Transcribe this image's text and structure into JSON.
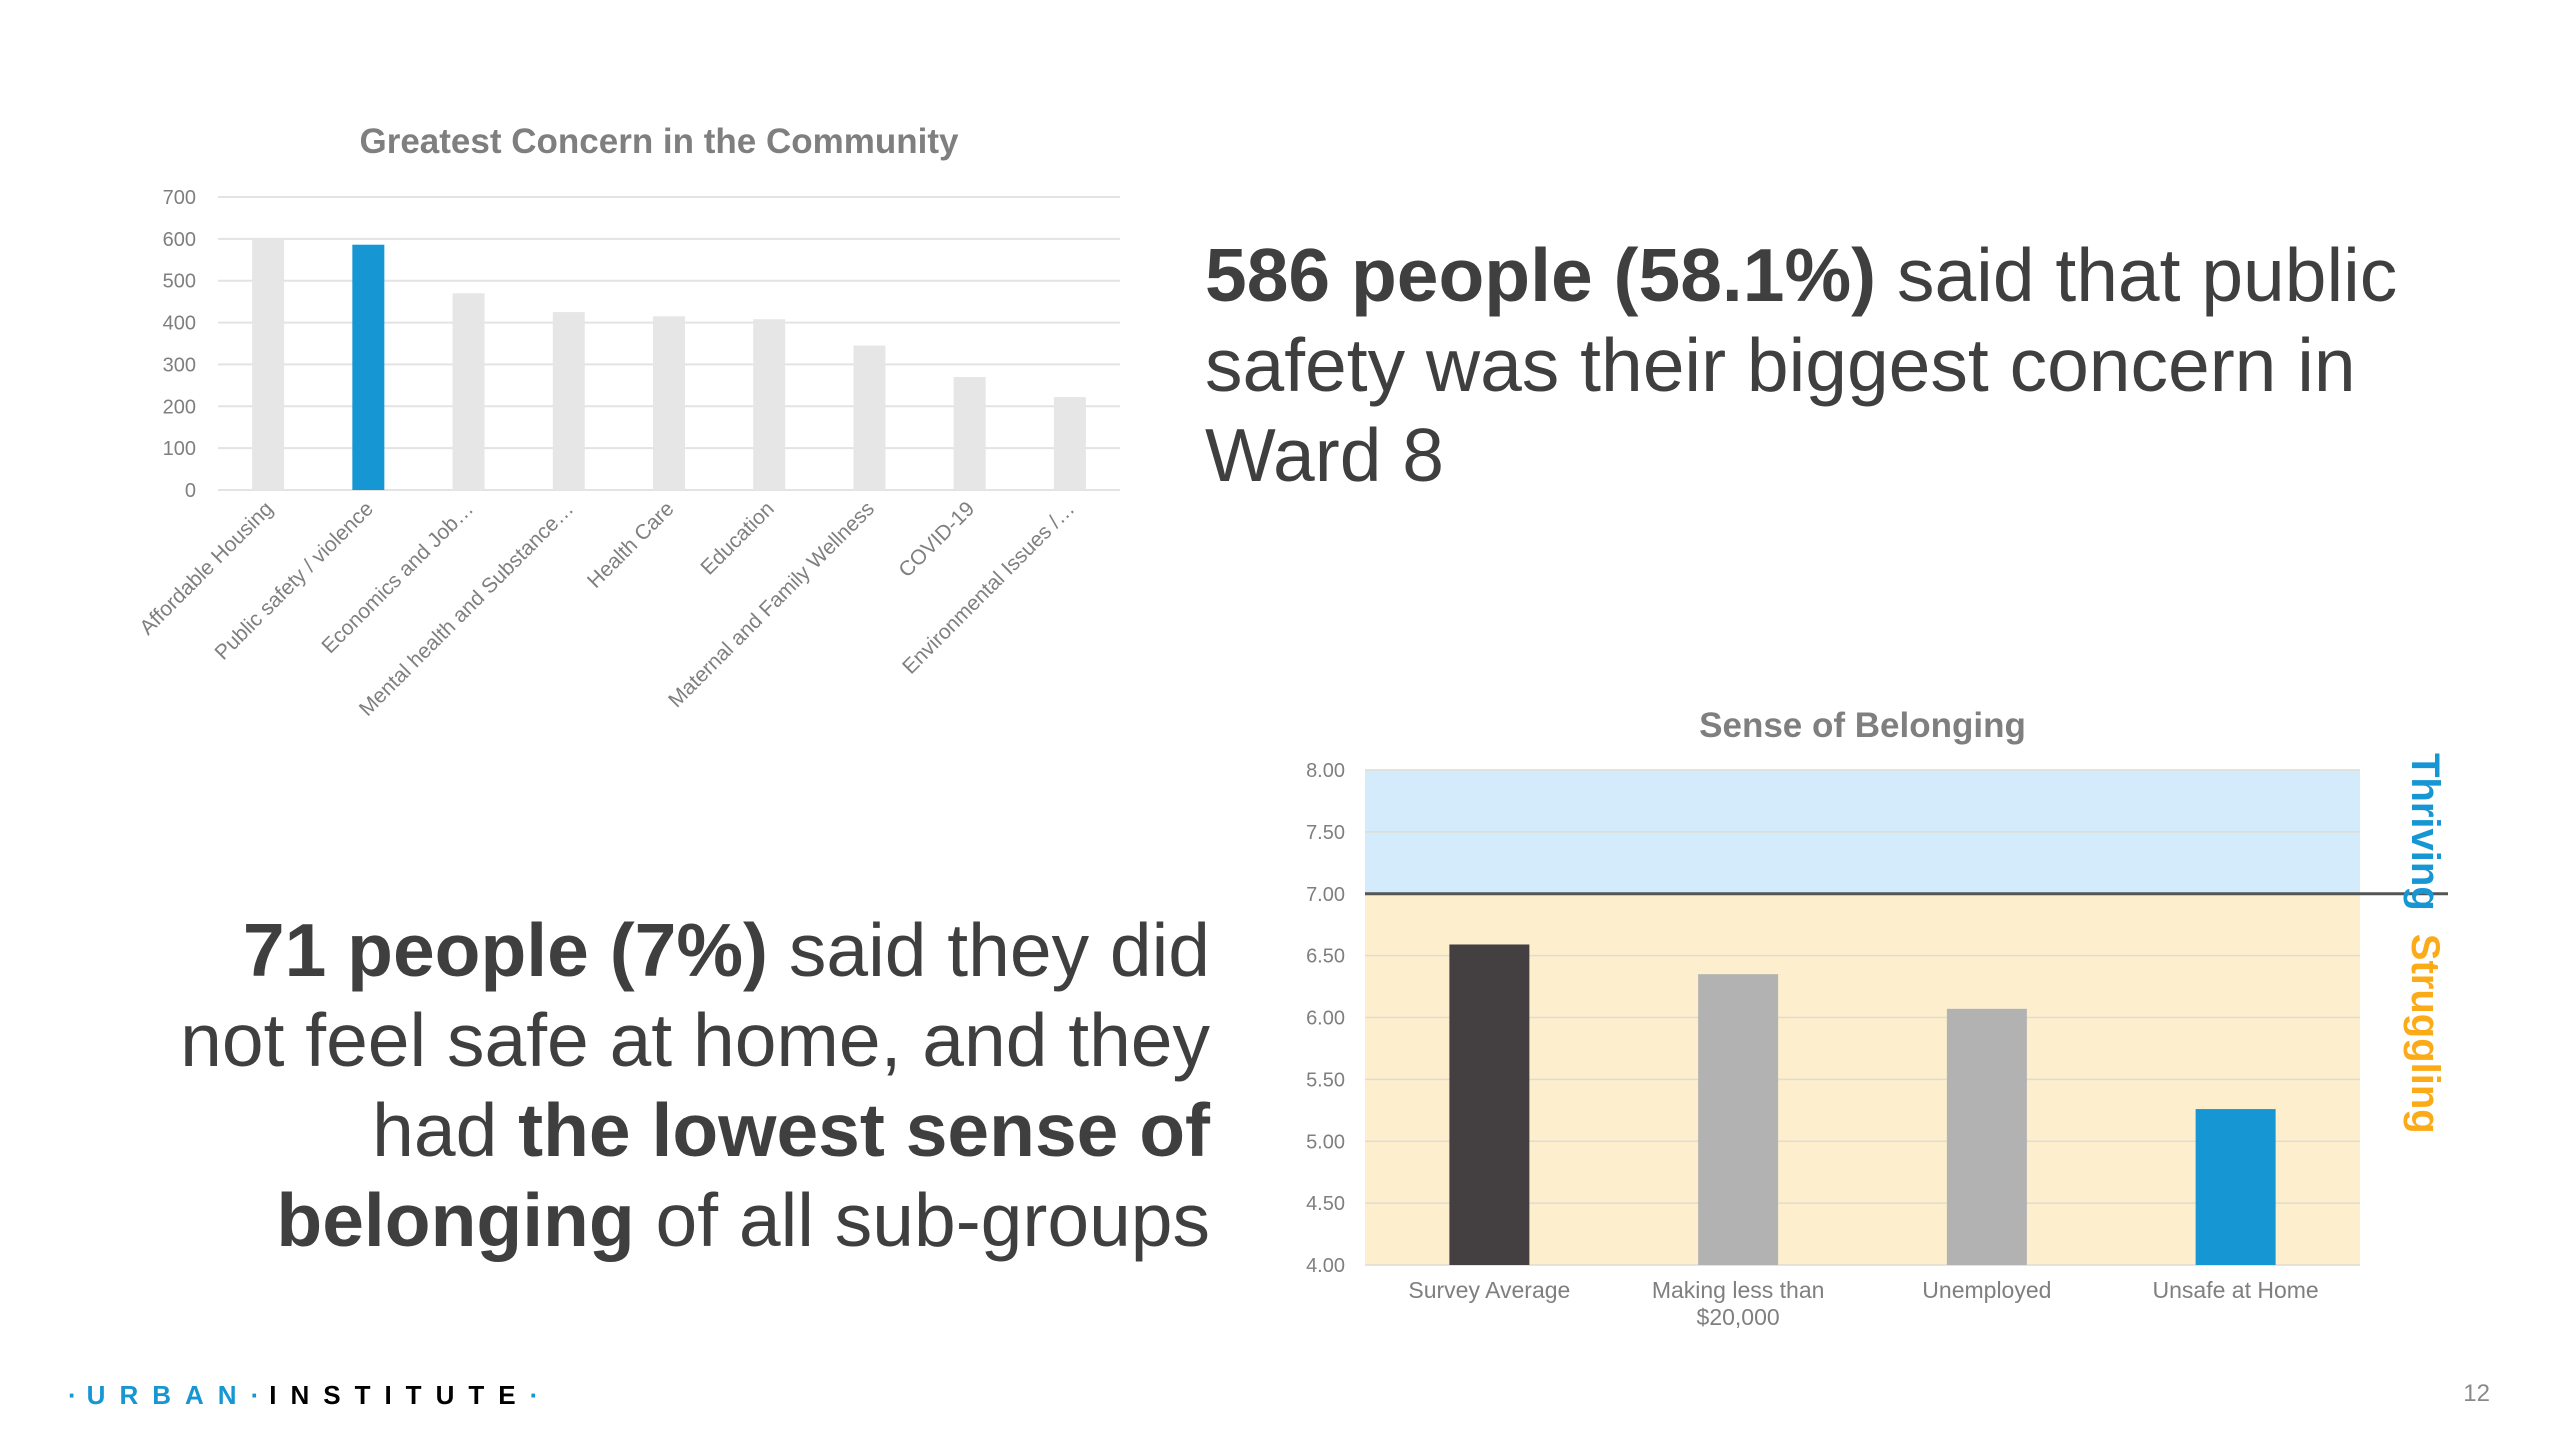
{
  "colors": {
    "text": "#3f3f3f",
    "accent_blue": "#1696d2",
    "bar_gray": "#e6e6e6",
    "bar_medium_gray": "#b2b2b2",
    "bar_dark": "#444042",
    "thriving_fill": "#d3ebfa",
    "struggling_fill": "#fdefce",
    "struggling_label": "#fbab18"
  },
  "chart_data": [
    {
      "type": "bar",
      "title": "Greatest Concern in the Community",
      "categories": [
        "Affordable Housing",
        "Public safety / violence",
        "Economics and Job…",
        "Mental health and Substance…",
        "Health Care",
        "Education",
        "Maternal and Family Wellness",
        "COVID-19",
        "Environmental Issues /…"
      ],
      "values": [
        600,
        586,
        470,
        425,
        415,
        408,
        345,
        270,
        222
      ],
      "highlight_index": 1,
      "ylim": [
        0,
        700
      ],
      "yticks": [
        "0",
        "100",
        "200",
        "300",
        "400",
        "500",
        "600",
        "700"
      ],
      "grid": true
    },
    {
      "type": "bar",
      "title": "Sense of Belonging",
      "categories": [
        "Survey Average",
        "Making less than $20,000",
        "Unemployed",
        "Unsafe at Home"
      ],
      "category_lines": [
        [
          "Survey Average"
        ],
        [
          "Making less than",
          "$20,000"
        ],
        [
          "Unemployed"
        ],
        [
          "Unsafe at Home"
        ]
      ],
      "values": [
        6.59,
        6.35,
        6.07,
        5.26
      ],
      "bar_colors": [
        "#444042",
        "#b2b2b2",
        "#b2b2b2",
        "#1696d2"
      ],
      "ylim": [
        4.0,
        8.0
      ],
      "yticks": [
        "4.00",
        "4.50",
        "5.00",
        "5.50",
        "6.00",
        "6.50",
        "7.00",
        "7.50",
        "8.00"
      ],
      "threshold": 7.0,
      "bands": [
        {
          "label": "Thriving",
          "from": 7.0,
          "to": 8.0
        },
        {
          "label": "Struggling",
          "from": 4.0,
          "to": 7.0
        }
      ],
      "grid": true
    }
  ],
  "stat1": {
    "bold": "586 people (58.1%)",
    "rest": " said that public safety was their biggest concern in Ward 8"
  },
  "stat2": {
    "bold1": "71 people (7%)",
    "mid1": " said they did not feel safe at home, and they had ",
    "bold2": "the lowest sense of belonging",
    "rest": " of all sub-groups"
  },
  "footer": {
    "logo_urban": "URBAN",
    "logo_institute": "INSTITUTE",
    "page_number": "12"
  }
}
